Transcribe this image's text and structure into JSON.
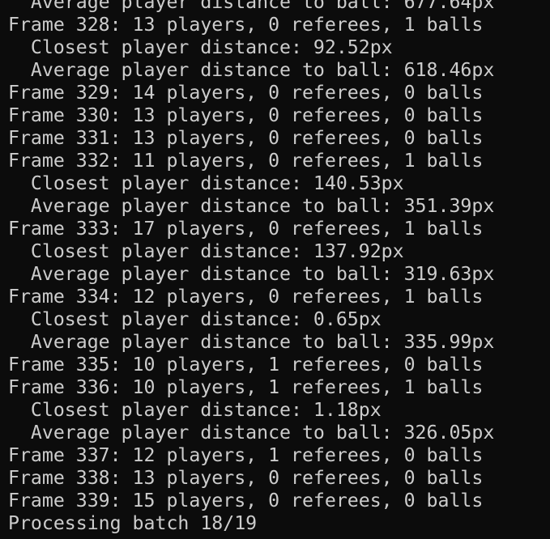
{
  "terminal": {
    "lines": [
      "  Average player distance to ball: 677.64px",
      "Frame 328: 13 players, 0 referees, 1 balls",
      "  Closest player distance: 92.52px",
      "  Average player distance to ball: 618.46px",
      "Frame 329: 14 players, 0 referees, 0 balls",
      "Frame 330: 13 players, 0 referees, 0 balls",
      "Frame 331: 13 players, 0 referees, 0 balls",
      "Frame 332: 11 players, 0 referees, 1 balls",
      "  Closest player distance: 140.53px",
      "  Average player distance to ball: 351.39px",
      "Frame 333: 17 players, 0 referees, 1 balls",
      "  Closest player distance: 137.92px",
      "  Average player distance to ball: 319.63px",
      "Frame 334: 12 players, 0 referees, 1 balls",
      "  Closest player distance: 0.65px",
      "  Average player distance to ball: 335.99px",
      "Frame 335: 10 players, 1 referees, 0 balls",
      "Frame 336: 10 players, 1 referees, 1 balls",
      "  Closest player distance: 1.18px",
      "  Average player distance to ball: 326.05px",
      "Frame 337: 12 players, 1 referees, 0 balls",
      "Frame 338: 13 players, 0 referees, 0 balls",
      "Frame 339: 15 players, 0 referees, 0 balls",
      "Processing batch 18/19"
    ]
  }
}
